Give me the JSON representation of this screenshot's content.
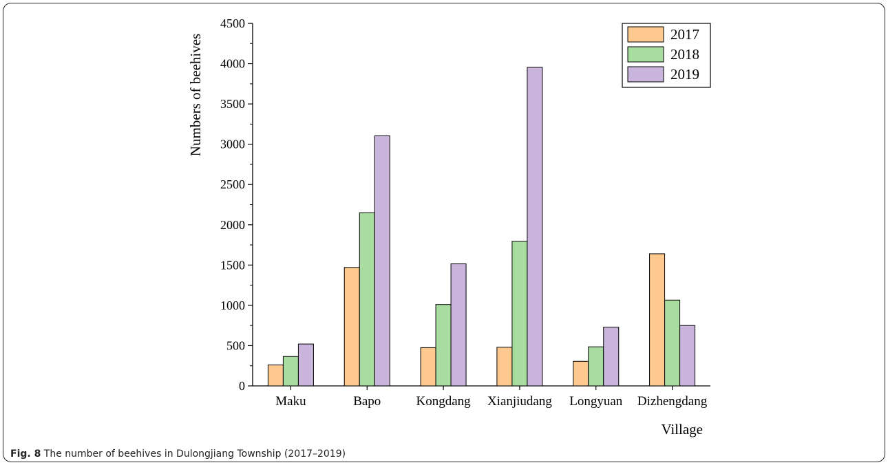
{
  "figure": {
    "caption_label": "Fig. 8",
    "caption_text": "The number of beehives in Dulongjiang Township (2017–2019)"
  },
  "chart_data": {
    "type": "bar",
    "xlabel": "Village",
    "ylabel": "Numbers of beehives",
    "categories": [
      "Maku",
      "Bapo",
      "Kongdang",
      "Xianjiudang",
      "Longyuan",
      "Dizhengdang"
    ],
    "series": [
      {
        "name": "2017",
        "values": [
          260,
          1470,
          475,
          480,
          305,
          1640
        ],
        "color": "#fdc98f"
      },
      {
        "name": "2018",
        "values": [
          365,
          2150,
          1010,
          1795,
          485,
          1065
        ],
        "color": "#a8dca0"
      },
      {
        "name": "2019",
        "values": [
          520,
          3105,
          1515,
          3955,
          730,
          750
        ],
        "color": "#c9b5db"
      }
    ],
    "ylim": [
      0,
      4500
    ],
    "yticks": [
      0,
      500,
      1000,
      1500,
      2000,
      2500,
      3000,
      3500,
      4000,
      4500
    ],
    "grid": false,
    "legend_position": "top-right"
  }
}
